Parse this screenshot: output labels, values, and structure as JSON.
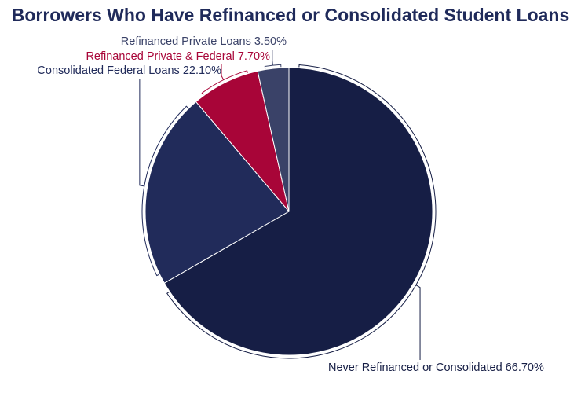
{
  "chart_data": {
    "type": "pie",
    "title": "Borrowers Who Have Refinanced or Consolidated Student Loans",
    "slices": [
      {
        "label": "Never Refinanced or Consolidated",
        "value": 66.7,
        "value_text": "66.70%",
        "color": "#161e45",
        "label_color": "#161e45"
      },
      {
        "label": "Consolidated Federal Loans",
        "value": 22.1,
        "value_text": "22.10%",
        "color": "#212b5a",
        "label_color": "#212b5a"
      },
      {
        "label": "Refinanced Private & Federal",
        "value": 7.7,
        "value_text": "7.70%",
        "color": "#a80538",
        "label_color": "#a80538"
      },
      {
        "label": "Refinanced Private Loans",
        "value": 3.5,
        "value_text": "3.50%",
        "color": "#3a4268",
        "label_color": "#3a4268"
      }
    ],
    "start": "12 o'clock",
    "direction": "clockwise",
    "legend": "none"
  }
}
